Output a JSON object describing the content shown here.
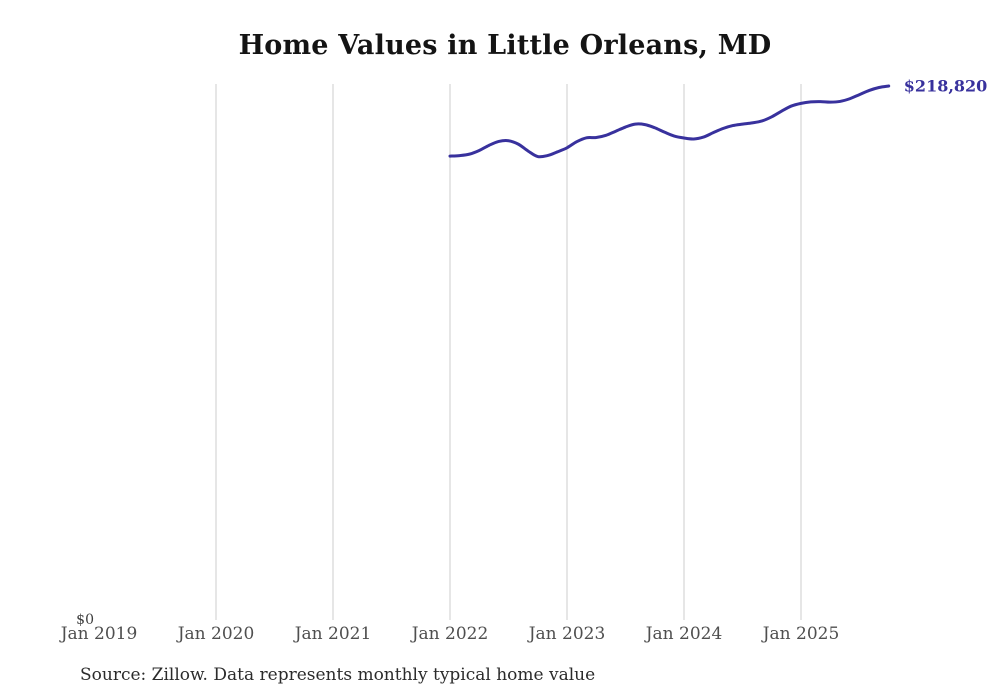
{
  "chart": {
    "title": "Home Values in Little Orleans, MD",
    "source_note": "Source: Zillow. Data represents monthly typical home value",
    "end_label": "$218,820",
    "y_zero_label": "$0",
    "colors": {
      "line": "#38319d",
      "end_label": "#38319d",
      "grid": "#cccccc",
      "axis_text": "#4f4f4f",
      "title_text": "#141414",
      "source_text": "#2b2b2b",
      "background": "#ffffff"
    }
  },
  "chart_data": {
    "type": "line",
    "title": "Home Values in Little Orleans, MD",
    "xlabel": "",
    "ylabel": "",
    "grid": "vertical-only",
    "legend": "none",
    "ylim": [
      0,
      218820
    ],
    "x_ticks": [
      {
        "label": "Jan 2019",
        "gridline": false
      },
      {
        "label": "Jan 2020",
        "gridline": true
      },
      {
        "label": "Jan 2021",
        "gridline": true
      },
      {
        "label": "Jan 2022",
        "gridline": true
      },
      {
        "label": "Jan 2023",
        "gridline": true
      },
      {
        "label": "Jan 2024",
        "gridline": true
      },
      {
        "label": "Jan 2025",
        "gridline": true
      }
    ],
    "y_ticks": [
      {
        "label": "$0",
        "value": 0
      }
    ],
    "end_annotation": {
      "text": "$218,820",
      "value": 218820
    },
    "series": [
      {
        "name": "Monthly typical home value",
        "x": [
          "2022-01",
          "2022-02",
          "2022-03",
          "2022-04",
          "2022-05",
          "2022-06",
          "2022-07",
          "2022-08",
          "2022-09",
          "2022-10",
          "2022-11",
          "2022-12",
          "2023-01",
          "2023-02",
          "2023-03",
          "2023-04",
          "2023-05",
          "2023-06",
          "2023-07",
          "2023-08",
          "2023-09",
          "2023-10",
          "2023-11",
          "2023-12",
          "2024-01",
          "2024-02",
          "2024-03",
          "2024-04",
          "2024-05",
          "2024-06",
          "2024-07",
          "2024-08",
          "2024-09",
          "2024-10",
          "2024-11",
          "2024-12",
          "2025-01",
          "2025-02",
          "2025-03",
          "2025-04",
          "2025-05",
          "2025-06",
          "2025-07",
          "2025-08",
          "2025-09",
          "2025-10"
        ],
        "values": [
          190100,
          190300,
          190900,
          192400,
          194500,
          196100,
          196400,
          195000,
          192200,
          189900,
          190300,
          191800,
          193500,
          196000,
          197600,
          197700,
          198600,
          200300,
          202000,
          203200,
          203000,
          201700,
          199900,
          198300,
          197500,
          197100,
          197900,
          199700,
          201400,
          202600,
          203200,
          203700,
          204500,
          206200,
          208500,
          210600,
          211700,
          212300,
          212400,
          212200,
          212500,
          213600,
          215300,
          217000,
          218200,
          218820
        ]
      }
    ]
  }
}
